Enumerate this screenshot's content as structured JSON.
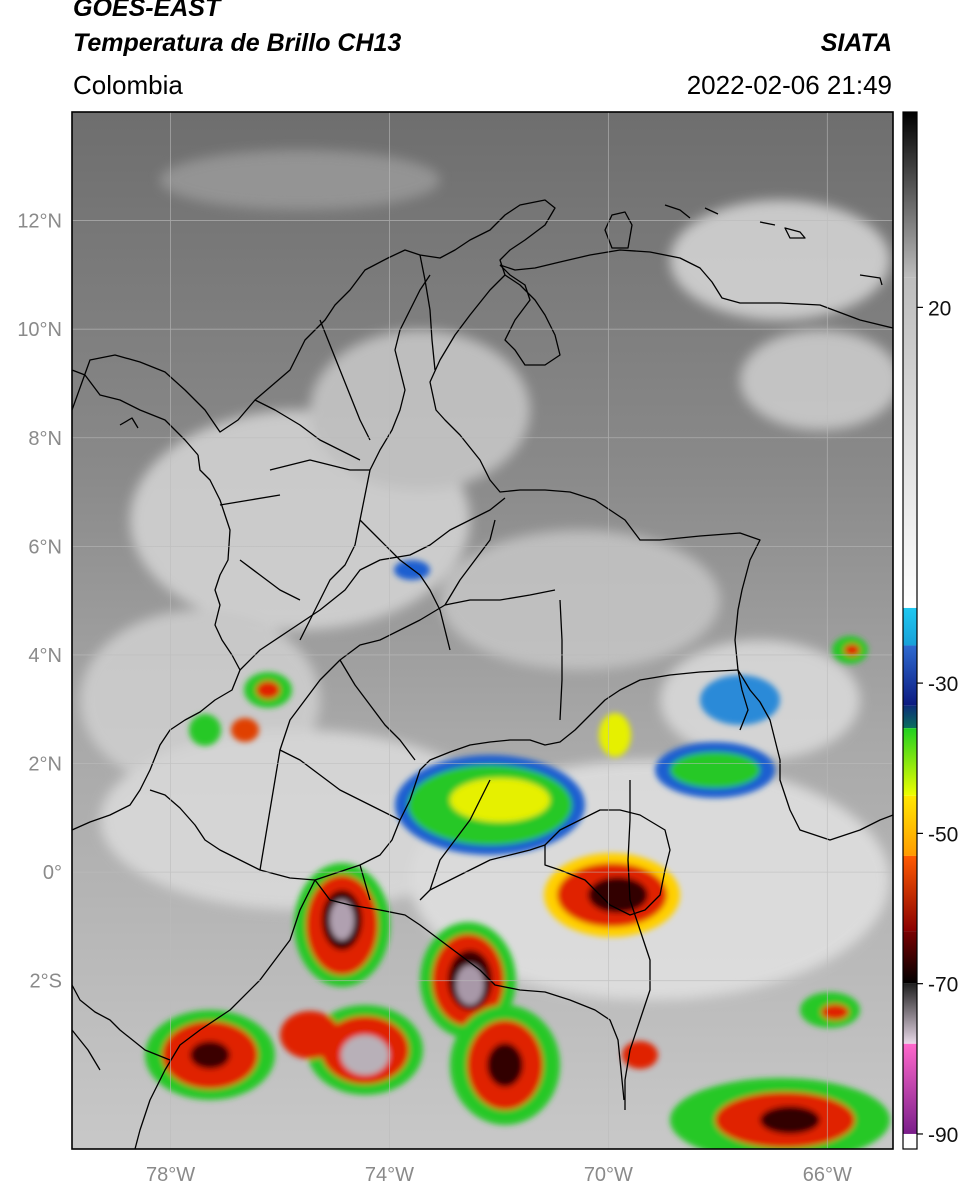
{
  "header": {
    "satellite": "GOES-EAST",
    "product": "Temperatura de Brillo CH13",
    "region": "Colombia",
    "source": "SIATA",
    "datetime": "2022-02-06 21:49"
  },
  "map": {
    "lon_range": [
      -79.8,
      -64.8
    ],
    "lat_range": [
      -5.1,
      14.0
    ],
    "lat_labels": [
      {
        "value": 12,
        "text": "12°N"
      },
      {
        "value": 10,
        "text": "10°N"
      },
      {
        "value": 8,
        "text": "8°N"
      },
      {
        "value": 6,
        "text": "6°N"
      },
      {
        "value": 4,
        "text": "4°N"
      },
      {
        "value": 2,
        "text": "2°N"
      },
      {
        "value": 0,
        "text": "0°"
      },
      {
        "value": -2,
        "text": "2°S"
      }
    ],
    "lon_labels": [
      {
        "value": -78,
        "text": "78°W"
      },
      {
        "value": -74,
        "text": "74°W"
      },
      {
        "value": -70,
        "text": "70°W"
      },
      {
        "value": -66,
        "text": "66°W"
      }
    ],
    "gridlines": true,
    "basemap": "GOES-16 brightness temperature imagery over northwestern South America with country and department borders"
  },
  "colorbar": {
    "range": [
      -92,
      46
    ],
    "ticks": [
      {
        "value": 20,
        "text": "20"
      },
      {
        "value": -30,
        "text": "-30"
      },
      {
        "value": -50,
        "text": "-50"
      },
      {
        "value": -70,
        "text": "-70"
      },
      {
        "value": -90,
        "text": "-90"
      }
    ],
    "segments": [
      {
        "from": 24,
        "to": 46,
        "colors": [
          "#bdbdbd",
          "#000000"
        ]
      },
      {
        "from": -20,
        "to": 24,
        "colors": [
          "#ffffff",
          "#bdbdbd"
        ]
      },
      {
        "from": -25,
        "to": -20,
        "colors": [
          "#18a0d8",
          "#1ec8f0"
        ]
      },
      {
        "from": -33,
        "to": -25,
        "colors": [
          "#0c1a80",
          "#2e6ad0"
        ]
      },
      {
        "from": -36,
        "to": -33,
        "colors": [
          "#0a6f5e",
          "#0c2e7a"
        ]
      },
      {
        "from": -45,
        "to": -36,
        "colors": [
          "#f0ff00",
          "#20d020"
        ]
      },
      {
        "from": -53,
        "to": -45,
        "colors": [
          "#ff9a00",
          "#ffe800"
        ]
      },
      {
        "from": -63,
        "to": -53,
        "colors": [
          "#8a0000",
          "#ff5a00"
        ]
      },
      {
        "from": -70,
        "to": -63,
        "colors": [
          "#000000",
          "#7a0000"
        ]
      },
      {
        "from": -78,
        "to": -70,
        "colors": [
          "#e8d8e8",
          "#202020"
        ]
      },
      {
        "from": -90,
        "to": -78,
        "colors": [
          "#7a1e8a",
          "#ff68cc"
        ]
      },
      {
        "from": -92,
        "to": -90,
        "colors": [
          "#ffffff",
          "#ffffff"
        ]
      }
    ]
  }
}
